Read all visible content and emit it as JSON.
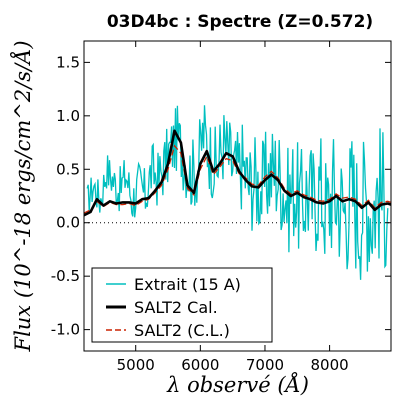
{
  "chart_data": {
    "type": "line",
    "title": "03D4bc : Spectre (Z=0.572)",
    "xlabel": "λ observé (Å)",
    "ylabel": "Flux (10^-18 ergs/cm^2/s/Å)",
    "xlim": [
      4200,
      8950
    ],
    "ylim": [
      -1.2,
      1.7
    ],
    "xticks": [
      5000,
      6000,
      7000,
      8000
    ],
    "xtick_labels": [
      "5000",
      "6000",
      "7000",
      "8000"
    ],
    "yticks": [
      -1.0,
      -0.5,
      0.0,
      0.5,
      1.0,
      1.5
    ],
    "ytick_labels": [
      "-1.0",
      "-0.5",
      "0.0",
      "0.5",
      "1.0",
      "1.5"
    ],
    "zero_line": "dotted",
    "legend_position": "lower-left",
    "series": [
      {
        "name": "Extrait (15 A)",
        "color": "#00bfbf",
        "style": "noisy-line",
        "x": [
          4250,
          4350,
          4450,
          4550,
          4650,
          4750,
          4850,
          4950,
          5050,
          5150,
          5250,
          5350,
          5450,
          5550,
          5650,
          5750,
          5850,
          5950,
          6050,
          6150,
          6250,
          6350,
          6450,
          6550,
          6650,
          6750,
          6850,
          6950,
          7050,
          7150,
          7250,
          7350,
          7450,
          7550,
          7650,
          7750,
          7850,
          7950,
          8050,
          8150,
          8250,
          8350,
          8450,
          8550,
          8650,
          8750,
          8850,
          8900
        ],
        "values": [
          0.2,
          0.35,
          0.2,
          0.5,
          0.4,
          0.3,
          0.45,
          0.2,
          0.35,
          0.25,
          0.5,
          0.4,
          0.55,
          0.7,
          0.8,
          0.6,
          0.45,
          0.5,
          0.85,
          0.65,
          0.5,
          0.75,
          0.6,
          0.45,
          0.55,
          0.35,
          0.4,
          0.3,
          0.45,
          0.5,
          0.4,
          0.2,
          0.35,
          0.15,
          0.3,
          0.2,
          0.35,
          0.1,
          0.3,
          0.2,
          0.1,
          0.3,
          0.05,
          0.25,
          0.1,
          0.3,
          0.2,
          0.3
        ]
      },
      {
        "name": "SALT2 Cal.",
        "color": "#000000",
        "style": "thick-line",
        "x": [
          4200,
          4300,
          4400,
          4500,
          4600,
          4700,
          4800,
          4900,
          5000,
          5100,
          5200,
          5300,
          5400,
          5500,
          5600,
          5700,
          5800,
          5900,
          6000,
          6100,
          6200,
          6300,
          6400,
          6500,
          6600,
          6700,
          6800,
          6900,
          7000,
          7100,
          7200,
          7300,
          7400,
          7500,
          7600,
          7700,
          7800,
          7900,
          8000,
          8100,
          8200,
          8300,
          8400,
          8500,
          8600,
          8700,
          8800,
          8900,
          8950
        ],
        "values": [
          0.07,
          0.1,
          0.22,
          0.16,
          0.2,
          0.18,
          0.19,
          0.19,
          0.18,
          0.22,
          0.23,
          0.3,
          0.38,
          0.55,
          0.86,
          0.75,
          0.35,
          0.28,
          0.55,
          0.67,
          0.48,
          0.55,
          0.65,
          0.62,
          0.48,
          0.4,
          0.34,
          0.33,
          0.4,
          0.45,
          0.4,
          0.3,
          0.25,
          0.28,
          0.24,
          0.22,
          0.19,
          0.18,
          0.2,
          0.25,
          0.2,
          0.22,
          0.2,
          0.14,
          0.19,
          0.12,
          0.17,
          0.18,
          0.17
        ]
      },
      {
        "name": "SALT2 (C.L.)",
        "color": "#cc2200",
        "style": "dashed",
        "x": [
          4200,
          4300,
          4400,
          4500,
          4600,
          4700,
          4800,
          4900,
          5000,
          5100,
          5200,
          5300,
          5400,
          5500,
          5600,
          5700,
          5800,
          5900,
          6000,
          6100,
          6200,
          6300,
          6400,
          6500,
          6600,
          6700,
          6800,
          6900,
          7000,
          7100,
          7200,
          7300,
          7400,
          7500,
          7600,
          7700,
          7800,
          7900,
          8000,
          8100,
          8200,
          8300,
          8400,
          8500,
          8600,
          8700,
          8800,
          8900,
          8950
        ],
        "values": [
          0.09,
          0.12,
          0.2,
          0.15,
          0.19,
          0.17,
          0.17,
          0.18,
          0.16,
          0.2,
          0.22,
          0.28,
          0.35,
          0.5,
          0.72,
          0.65,
          0.32,
          0.26,
          0.5,
          0.62,
          0.45,
          0.52,
          0.6,
          0.58,
          0.46,
          0.42,
          0.36,
          0.35,
          0.43,
          0.48,
          0.42,
          0.32,
          0.27,
          0.3,
          0.26,
          0.24,
          0.21,
          0.2,
          0.22,
          0.27,
          0.23,
          0.24,
          0.22,
          0.16,
          0.21,
          0.14,
          0.19,
          0.2,
          0.19
        ]
      }
    ]
  }
}
